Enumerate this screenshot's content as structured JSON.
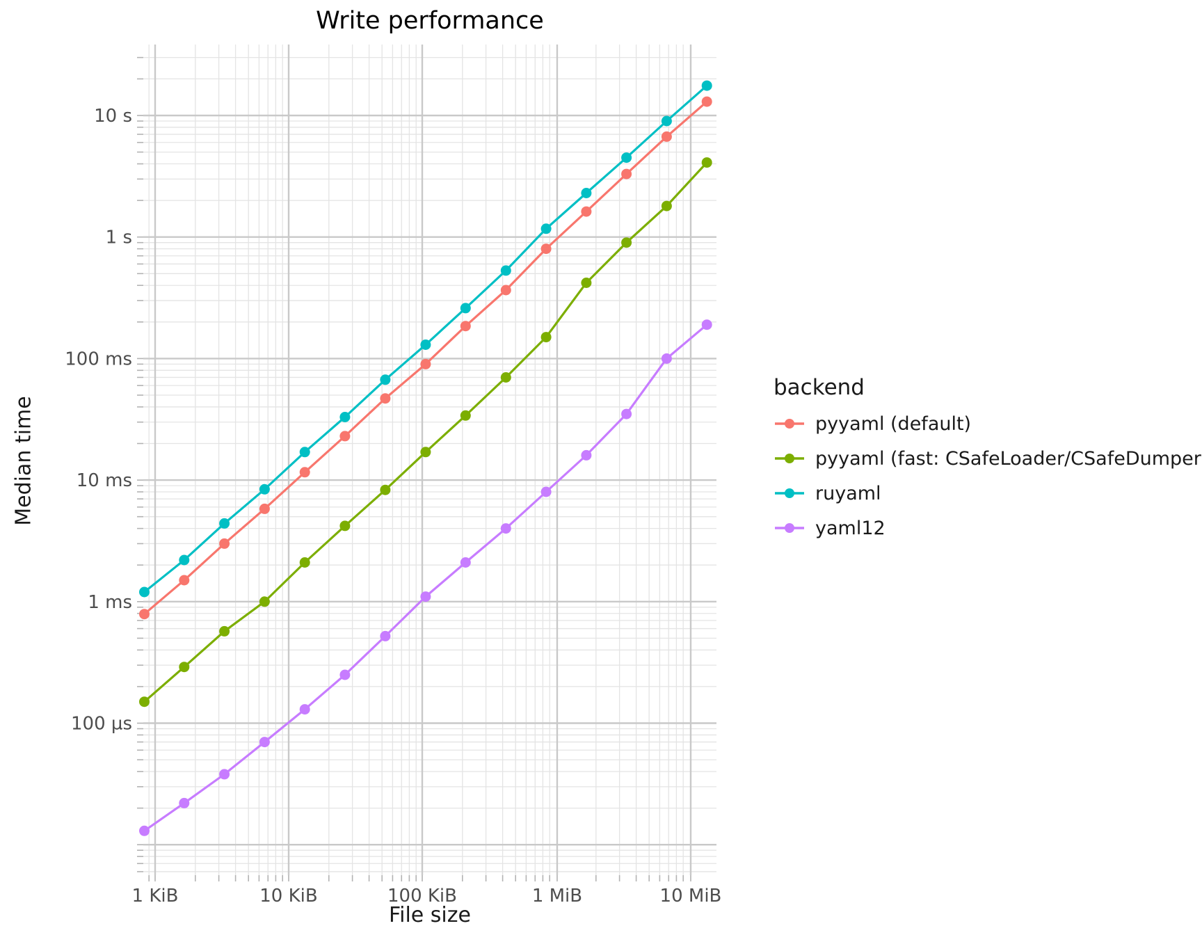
{
  "chart_data": {
    "type": "line",
    "title": "Write performance",
    "xlabel": "File size",
    "ylabel": "Median time",
    "legend_title": "backend",
    "x_scale": "log",
    "y_scale": "log",
    "x_unit": "KiB",
    "x": [
      0.83,
      1.65,
      3.3,
      6.6,
      13.2,
      26.4,
      52.9,
      106,
      211,
      423,
      846,
      1692,
      3383,
      6766,
      13533
    ],
    "x_ticks": [
      {
        "label": "1 KiB",
        "kib": 1
      },
      {
        "label": "10 KiB",
        "kib": 10
      },
      {
        "label": "100 KiB",
        "kib": 100
      },
      {
        "label": "1 MiB",
        "kib": 1024
      },
      {
        "label": "10 MiB",
        "kib": 10240
      }
    ],
    "y_ticks": [
      {
        "label": "10 s",
        "seconds": 10
      },
      {
        "label": "1 s",
        "seconds": 1
      },
      {
        "label": "100 ms",
        "seconds": 0.1
      },
      {
        "label": "10 ms",
        "seconds": 0.01
      },
      {
        "label": "1 ms",
        "seconds": 0.001
      },
      {
        "label": "100 µs",
        "seconds": 0.0001
      }
    ],
    "series": [
      {
        "name": "pyyaml (default)",
        "color": "#F8766D",
        "values": [
          0.00079,
          0.0015,
          0.003,
          0.0058,
          0.0116,
          0.023,
          0.047,
          0.09,
          0.185,
          0.366,
          0.8,
          1.62,
          3.3,
          6.7,
          13.0
        ]
      },
      {
        "name": "pyyaml (fast: CSafeLoader/CSafeDumper)",
        "color": "#7CAE00",
        "values": [
          0.00015,
          0.00029,
          0.00057,
          0.001,
          0.0021,
          0.0042,
          0.0083,
          0.017,
          0.034,
          0.07,
          0.15,
          0.42,
          0.9,
          1.8,
          4.1
        ]
      },
      {
        "name": "ruyaml",
        "color": "#00BFC4",
        "values": [
          0.0012,
          0.0022,
          0.0044,
          0.0084,
          0.017,
          0.033,
          0.067,
          0.13,
          0.26,
          0.53,
          1.17,
          2.3,
          4.5,
          9.0,
          17.6
        ]
      },
      {
        "name": "yaml12",
        "color": "#C77CFF",
        "values": [
          1.3e-05,
          2.2e-05,
          3.8e-05,
          7e-05,
          0.00013,
          0.00025,
          0.00052,
          0.0011,
          0.0021,
          0.004,
          0.008,
          0.016,
          0.035,
          0.1,
          0.19
        ]
      }
    ],
    "grid": {
      "major_color": "#c9c9c9",
      "minor_color": "#e4e4e4",
      "tick_color": "#b3b3b3"
    }
  }
}
